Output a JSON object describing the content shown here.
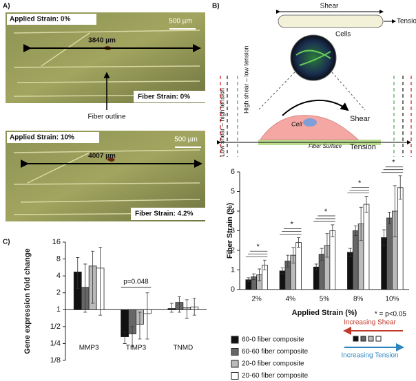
{
  "panel_labels": [
    "A)",
    "B)",
    "C)"
  ],
  "images": [
    {
      "applied": "Applied Strain: 0%",
      "scale": "500 µm",
      "length": "3840 µm",
      "fiber": "Fiber Strain: 0%",
      "note": "Fiber outline"
    },
    {
      "applied": "Applied Strain: 10%",
      "scale": "500 µm",
      "length": "4007 µm",
      "fiber": "Fiber Strain: 4.2%"
    }
  ],
  "diagram": {
    "shear_top": "Shear",
    "tension_top": "Tension",
    "cells": "Cells",
    "low_shear": "Low shear – high tension",
    "high_shear": "High shear – low tension",
    "cell": "Cell",
    "shear": "Shear",
    "surface": "Fiber Surface",
    "tension": "Tension"
  },
  "chart_data": [
    {
      "type": "bar",
      "y_label": "Fiber Strain (%)",
      "x_label": "Applied Strain (%)",
      "categories": [
        "2%",
        "4%",
        "5%",
        "8%",
        "10%"
      ],
      "series": [
        {
          "name": "60-0 fiber composite",
          "color": "#111111",
          "values": [
            0.5,
            0.95,
            1.15,
            1.9,
            2.65
          ],
          "errors": [
            0.1,
            0.15,
            0.15,
            0.2,
            0.4
          ]
        },
        {
          "name": "60-60 fiber composite",
          "color": "#666666",
          "values": [
            0.65,
            1.45,
            1.8,
            3.0,
            3.65
          ],
          "errors": [
            0.15,
            0.3,
            0.3,
            0.25,
            0.3
          ]
        },
        {
          "name": "20-0 fiber composite",
          "color": "#bbbbbb",
          "values": [
            0.75,
            1.75,
            2.25,
            3.35,
            4.0
          ],
          "errors": [
            0.3,
            0.4,
            0.6,
            0.85,
            1.3
          ]
        },
        {
          "name": "20-60 fiber composite",
          "color": "#ffffff",
          "values": [
            1.25,
            2.4,
            3.0,
            4.35,
            5.2
          ],
          "errors": [
            0.25,
            0.25,
            0.3,
            0.4,
            0.6
          ]
        }
      ],
      "significance": [
        "*",
        "*",
        "*",
        "*",
        "*"
      ],
      "significance_note": "* = p<0.05",
      "ylim": [
        0,
        6
      ],
      "yticks": [
        0,
        1,
        2,
        3,
        4,
        5,
        6
      ]
    },
    {
      "type": "bar",
      "y_label": "Gene expression fold change",
      "log_base": 2,
      "baseline": 1,
      "categories": [
        "MMP3",
        "TIMP3",
        "TNMD"
      ],
      "series": [
        {
          "name": "60-0 fiber composite",
          "color": "#111111",
          "values": [
            4.7,
            0.33,
            1.05
          ],
          "lower": [
            2.4,
            0.25,
            0.9
          ],
          "upper": [
            8.5,
            0.4,
            1.3
          ]
        },
        {
          "name": "60-60 fiber composite",
          "color": "#666666",
          "values": [
            2.5,
            0.37,
            1.35
          ],
          "lower": [
            0.9,
            0.22,
            0.9
          ],
          "upper": [
            6.5,
            0.5,
            1.7
          ]
        },
        {
          "name": "20-0 fiber composite",
          "color": "#bbbbbb",
          "values": [
            6,
            0.55,
            1.08
          ],
          "lower": [
            1.3,
            0.3,
            0.7
          ],
          "upper": [
            11,
            0.9,
            1.5
          ]
        },
        {
          "name": "20-60 fiber composite",
          "color": "#ffffff",
          "values": [
            5.5,
            0.85,
            1.12
          ],
          "lower": [
            0.8,
            0.3,
            0.8
          ],
          "upper": [
            13,
            2,
            1.6
          ]
        }
      ],
      "annotation": "p=0.048",
      "ylim": [
        0.125,
        16
      ],
      "yticks": [
        16,
        8,
        4,
        2,
        1,
        {
          "value": 0.5,
          "label": "1/2"
        },
        {
          "value": 0.25,
          "label": "1/4"
        },
        {
          "value": 0.125,
          "label": "1/8"
        }
      ]
    }
  ],
  "legend_arrows": {
    "shear": "Increasing Shear",
    "tension": "Increasing Tension"
  }
}
